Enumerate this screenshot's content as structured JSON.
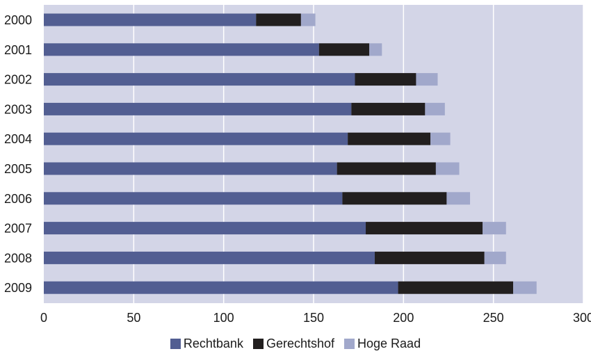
{
  "chart_data": {
    "type": "bar",
    "orientation": "horizontal",
    "stacked": true,
    "title": "",
    "xlabel": "",
    "ylabel": "",
    "categories": [
      "2000",
      "2001",
      "2002",
      "2003",
      "2004",
      "2005",
      "2006",
      "2007",
      "2008",
      "2009"
    ],
    "series": [
      {
        "name": "Rechtbank",
        "color": "#525e92",
        "values": [
          118,
          153,
          173,
          171,
          169,
          163,
          166,
          179,
          184,
          197
        ]
      },
      {
        "name": "Gerechtshof",
        "color": "#221f1f",
        "values": [
          25,
          28,
          34,
          41,
          46,
          55,
          58,
          65,
          61,
          64
        ]
      },
      {
        "name": "Hoge Raad",
        "color": "#a1a8cb",
        "values": [
          8,
          7,
          12,
          11,
          11,
          13,
          13,
          13,
          12,
          13
        ]
      }
    ],
    "xlim": [
      0,
      300
    ],
    "xticks": [
      "0",
      "50",
      "100",
      "150",
      "200",
      "250",
      "300"
    ],
    "grid": true,
    "legend_position": "bottom",
    "plot_background": "#d3d5e7",
    "gridline_color": "#ffffff"
  }
}
